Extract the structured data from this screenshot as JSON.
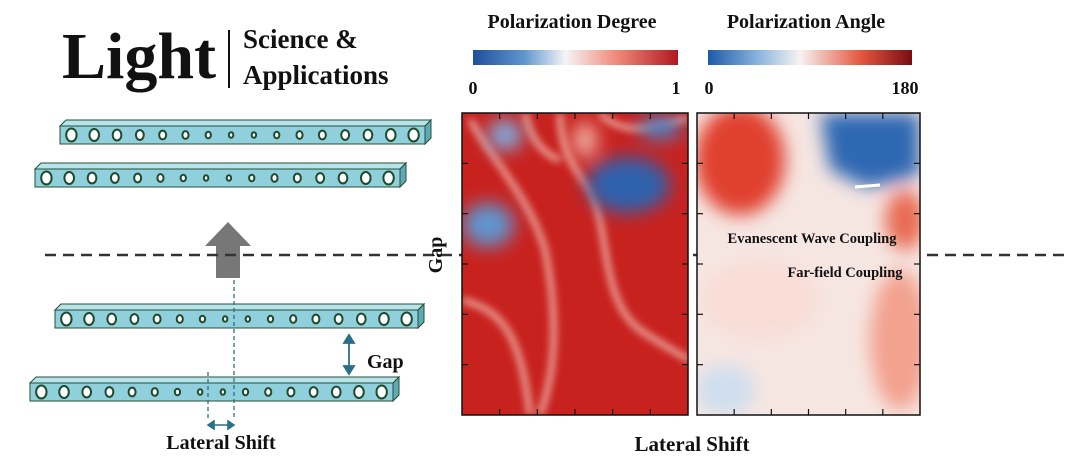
{
  "logo": {
    "name": "Light",
    "subtitle_lines": [
      "Science &",
      "Applications"
    ]
  },
  "diagram": {
    "gap_label": "Gap",
    "shift_label": "Lateral Shift"
  },
  "maps": [
    {
      "title": "Polarization Degree",
      "scale_min": 0,
      "scale_max": 1
    },
    {
      "title": "Polarization Angle",
      "scale_min": 0,
      "scale_max": 180
    }
  ],
  "axes": {
    "y_label": "Gap",
    "x_label": "Lateral Shift"
  },
  "annotations": {
    "near": "Evanescent Wave Coupling",
    "far": "Far-field Coupling"
  }
}
